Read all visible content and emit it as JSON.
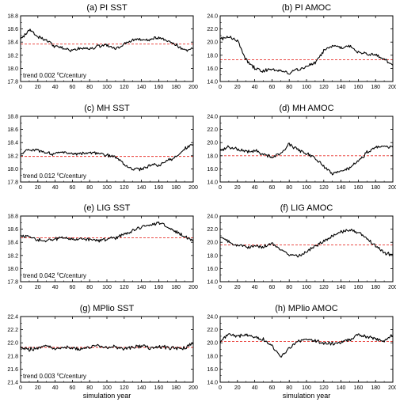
{
  "chart_data": [
    {
      "type": "line",
      "title": "(a) PI SST",
      "xlim": [
        0,
        200
      ],
      "ylim": [
        17.8,
        18.8
      ],
      "yticks": [
        "17.8",
        "18.0",
        "18.2",
        "18.4",
        "18.6",
        "18.8"
      ],
      "xticks": [
        "0",
        "20",
        "40",
        "60",
        "80",
        "100",
        "120",
        "140",
        "160",
        "180",
        "200"
      ],
      "mean": 18.37,
      "trend_prefix": "trend 0.002",
      "trend_unit": "C/century",
      "degree_mark": "o",
      "xlabel": "",
      "x": [
        0,
        10,
        20,
        30,
        40,
        50,
        60,
        70,
        80,
        90,
        100,
        110,
        120,
        130,
        140,
        150,
        160,
        170,
        180,
        190,
        200
      ],
      "y": [
        18.45,
        18.58,
        18.49,
        18.42,
        18.33,
        18.31,
        18.26,
        18.31,
        18.3,
        18.34,
        18.36,
        18.3,
        18.37,
        18.43,
        18.45,
        18.44,
        18.47,
        18.41,
        18.36,
        18.27,
        18.3
      ]
    },
    {
      "type": "line",
      "title": "(b) PI AMOC",
      "xlim": [
        0,
        200
      ],
      "ylim": [
        14.0,
        24.0
      ],
      "yticks": [
        "14.0",
        "16.0",
        "18.0",
        "20.0",
        "22.0",
        "24.0"
      ],
      "xticks": [
        "0",
        "20",
        "40",
        "60",
        "80",
        "100",
        "120",
        "140",
        "160",
        "180",
        "200"
      ],
      "mean": 17.3,
      "xlabel": "",
      "x": [
        0,
        10,
        20,
        30,
        40,
        50,
        60,
        70,
        80,
        90,
        100,
        110,
        120,
        130,
        140,
        150,
        160,
        170,
        180,
        190,
        200
      ],
      "y": [
        20.5,
        20.8,
        20.2,
        17.3,
        16.0,
        15.6,
        15.8,
        15.6,
        15.3,
        15.8,
        16.2,
        16.9,
        18.6,
        19.4,
        19.2,
        19.5,
        18.4,
        18.2,
        18.0,
        17.4,
        16.7
      ]
    },
    {
      "type": "line",
      "title": "(c) MH SST",
      "xlim": [
        0,
        200
      ],
      "ylim": [
        17.8,
        18.8
      ],
      "yticks": [
        "17.8",
        "18.0",
        "18.2",
        "18.4",
        "18.6",
        "18.8"
      ],
      "xticks": [
        "0",
        "20",
        "40",
        "60",
        "80",
        "100",
        "120",
        "140",
        "160",
        "180",
        "200"
      ],
      "mean": 18.19,
      "trend_prefix": "trend 0.012",
      "trend_unit": "C/century",
      "degree_mark": "o",
      "xlabel": "",
      "x": [
        0,
        10,
        20,
        30,
        40,
        50,
        60,
        70,
        80,
        90,
        100,
        110,
        120,
        130,
        140,
        150,
        160,
        170,
        180,
        190,
        200
      ],
      "y": [
        18.22,
        18.3,
        18.28,
        18.26,
        18.22,
        18.25,
        18.23,
        18.24,
        18.25,
        18.24,
        18.21,
        18.18,
        18.07,
        17.99,
        18.0,
        18.05,
        18.06,
        18.13,
        18.18,
        18.3,
        18.38
      ]
    },
    {
      "type": "line",
      "title": "(d) MH AMOC",
      "xlim": [
        0,
        200
      ],
      "ylim": [
        14.0,
        24.0
      ],
      "yticks": [
        "14.0",
        "16.0",
        "18.0",
        "20.0",
        "22.0",
        "24.0"
      ],
      "xticks": [
        "0",
        "20",
        "40",
        "60",
        "80",
        "100",
        "120",
        "140",
        "160",
        "180",
        "200"
      ],
      "mean": 18.0,
      "xlabel": "",
      "x": [
        0,
        10,
        20,
        30,
        40,
        50,
        60,
        70,
        80,
        90,
        100,
        110,
        120,
        130,
        140,
        150,
        160,
        170,
        180,
        190,
        200
      ],
      "y": [
        18.8,
        19.3,
        19.0,
        18.6,
        18.8,
        18.2,
        17.8,
        18.4,
        19.8,
        18.9,
        18.3,
        17.6,
        16.3,
        15.3,
        15.6,
        16.0,
        17.2,
        18.5,
        19.3,
        19.4,
        19.2
      ]
    },
    {
      "type": "line",
      "title": "(e) LIG SST",
      "xlim": [
        0,
        200
      ],
      "ylim": [
        17.8,
        18.8
      ],
      "yticks": [
        "17.8",
        "18.0",
        "18.2",
        "18.4",
        "18.6",
        "18.8"
      ],
      "xticks": [
        "0",
        "20",
        "40",
        "60",
        "80",
        "100",
        "120",
        "140",
        "160",
        "180",
        "200"
      ],
      "mean": 18.47,
      "trend_prefix": "trend 0.042",
      "trend_unit": "C/century",
      "degree_mark": "o",
      "xlabel": "",
      "x": [
        0,
        10,
        20,
        30,
        40,
        50,
        60,
        70,
        80,
        90,
        100,
        110,
        120,
        130,
        140,
        150,
        160,
        170,
        180,
        190,
        200
      ],
      "y": [
        18.5,
        18.48,
        18.44,
        18.42,
        18.45,
        18.47,
        18.44,
        18.46,
        18.44,
        18.42,
        18.45,
        18.47,
        18.52,
        18.58,
        18.63,
        18.66,
        18.7,
        18.64,
        18.57,
        18.49,
        18.42
      ]
    },
    {
      "type": "line",
      "title": "(f) LIG AMOC",
      "xlim": [
        0,
        200
      ],
      "ylim": [
        14.0,
        24.0
      ],
      "yticks": [
        "14.0",
        "16.0",
        "18.0",
        "20.0",
        "22.0",
        "24.0"
      ],
      "xticks": [
        "0",
        "20",
        "40",
        "60",
        "80",
        "100",
        "120",
        "140",
        "160",
        "180",
        "200"
      ],
      "mean": 19.6,
      "xlabel": "",
      "x": [
        0,
        10,
        20,
        30,
        40,
        50,
        60,
        70,
        80,
        90,
        100,
        110,
        120,
        130,
        140,
        150,
        160,
        170,
        180,
        190,
        200
      ],
      "y": [
        20.8,
        20.0,
        19.6,
        19.2,
        19.5,
        19.3,
        19.8,
        18.8,
        18.2,
        17.8,
        18.5,
        19.4,
        20.2,
        21.0,
        21.6,
        21.8,
        21.6,
        20.5,
        19.4,
        18.4,
        18.0
      ]
    },
    {
      "type": "line",
      "title": "(g) MPlio SST",
      "xlim": [
        0,
        200
      ],
      "ylim": [
        21.4,
        22.4
      ],
      "yticks": [
        "21.4",
        "21.6",
        "21.8",
        "22.0",
        "22.2",
        "22.4"
      ],
      "xticks": [
        "0",
        "20",
        "40",
        "60",
        "80",
        "100",
        "120",
        "140",
        "160",
        "180",
        "200"
      ],
      "mean": 21.93,
      "trend_prefix": "trend 0.003",
      "trend_unit": "C/century",
      "degree_mark": "o",
      "xlabel": "simulation year",
      "x": [
        0,
        10,
        20,
        30,
        40,
        50,
        60,
        70,
        80,
        90,
        100,
        110,
        120,
        130,
        140,
        150,
        160,
        170,
        180,
        190,
        200
      ],
      "y": [
        21.93,
        21.9,
        21.92,
        21.95,
        21.91,
        21.94,
        21.92,
        21.9,
        21.93,
        21.96,
        21.92,
        21.94,
        21.91,
        21.93,
        21.95,
        21.92,
        21.94,
        21.93,
        21.91,
        21.92,
        22.0
      ]
    },
    {
      "type": "line",
      "title": "(h) MPlio AMOC",
      "xlim": [
        0,
        200
      ],
      "ylim": [
        14.0,
        24.0
      ],
      "yticks": [
        "14.0",
        "16.0",
        "18.0",
        "20.0",
        "22.0",
        "24.0"
      ],
      "xticks": [
        "0",
        "20",
        "40",
        "60",
        "80",
        "100",
        "120",
        "140",
        "160",
        "180",
        "200"
      ],
      "mean": 20.2,
      "xlabel": "simulation year",
      "x": [
        0,
        10,
        20,
        30,
        40,
        50,
        60,
        70,
        80,
        90,
        100,
        110,
        120,
        130,
        140,
        150,
        160,
        170,
        180,
        190,
        200
      ],
      "y": [
        20.2,
        21.5,
        21.0,
        21.2,
        20.8,
        20.5,
        19.5,
        17.8,
        19.2,
        20.2,
        20.6,
        20.3,
        20.0,
        19.9,
        20.1,
        20.5,
        21.3,
        20.9,
        20.6,
        20.2,
        21.2
      ]
    }
  ]
}
